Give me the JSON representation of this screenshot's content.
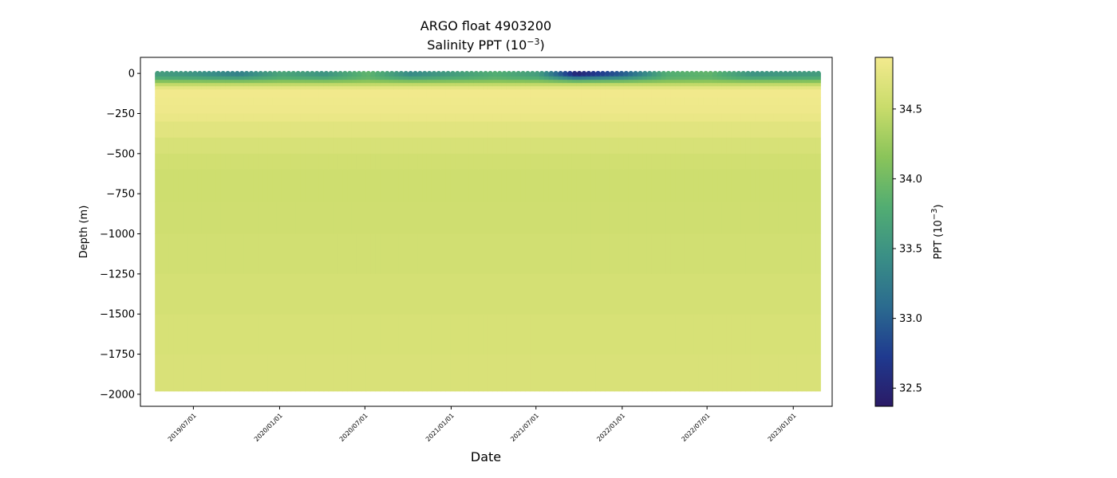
{
  "chart_data": {
    "type": "heatmap",
    "title": "ARGO float 4903200",
    "subtitle_text": "Salinity PPT (10",
    "subtitle_sup": "−3",
    "subtitle_close": ")",
    "xlabel": "Date",
    "ylabel": "Depth (m)",
    "colorbar_label_text": "PPT (10",
    "colorbar_label_sup": "−3",
    "colorbar_label_close": ")",
    "colormap": "haline",
    "colormap_stops": [
      "#2a1a66",
      "#1f3a8f",
      "#2b6b8f",
      "#3a8f86",
      "#52ad72",
      "#8ac45a",
      "#c9dc6b",
      "#f3ea8e"
    ],
    "xlim": [
      "2019-03-10",
      "2023-03-25"
    ],
    "x_start": "2019-04-10",
    "x_end": "2023-02-25",
    "x_ticks": [
      "2019/07/01",
      "2020/01/01",
      "2020/07/01",
      "2021/01/01",
      "2021/07/01",
      "2022/01/01",
      "2022/07/01",
      "2023/01/01"
    ],
    "ylim": [
      -2075,
      100
    ],
    "y_ticks": [
      0,
      -250,
      -500,
      -750,
      -1000,
      -1250,
      -1500,
      -1750,
      -2000
    ],
    "y_tick_labels": [
      "0",
      "−250",
      "−500",
      "−750",
      "−1000",
      "−1250",
      "−1500",
      "−1750",
      "−2000"
    ],
    "clim": [
      32.37,
      34.87
    ],
    "colorbar_ticks": [
      32.5,
      33.0,
      33.5,
      34.0,
      34.5
    ],
    "colorbar_tick_labels": [
      "32.5",
      "33.0",
      "33.5",
      "34.0",
      "34.5"
    ],
    "profile_interval_days": 10,
    "max_depth_m": -1980,
    "depth_profile": [
      {
        "depth": 0,
        "salinity": 33.5
      },
      {
        "depth": -40,
        "salinity": 34.1
      },
      {
        "depth": -100,
        "salinity": 34.86
      },
      {
        "depth": -250,
        "salinity": 34.82
      },
      {
        "depth": -400,
        "salinity": 34.66
      },
      {
        "depth": -600,
        "salinity": 34.55
      },
      {
        "depth": -1000,
        "salinity": 34.57
      },
      {
        "depth": -1500,
        "salinity": 34.62
      },
      {
        "depth": -2000,
        "salinity": 34.66
      }
    ],
    "surface_salinity_series": [
      {
        "date": "2019-04-10",
        "salinity": 33.6
      },
      {
        "date": "2019-07-01",
        "salinity": 33.5
      },
      {
        "date": "2019-10-01",
        "salinity": 33.3
      },
      {
        "date": "2020-01-01",
        "salinity": 33.7
      },
      {
        "date": "2020-04-01",
        "salinity": 33.5
      },
      {
        "date": "2020-07-01",
        "salinity": 33.9
      },
      {
        "date": "2020-10-01",
        "salinity": 33.4
      },
      {
        "date": "2021-01-01",
        "salinity": 33.6
      },
      {
        "date": "2021-04-01",
        "salinity": 33.8
      },
      {
        "date": "2021-07-01",
        "salinity": 33.6
      },
      {
        "date": "2021-09-20",
        "salinity": 32.5
      },
      {
        "date": "2022-01-01",
        "salinity": 33.0
      },
      {
        "date": "2022-04-01",
        "salinity": 33.8
      },
      {
        "date": "2022-07-01",
        "salinity": 33.9
      },
      {
        "date": "2022-10-01",
        "salinity": 33.5
      },
      {
        "date": "2023-02-25",
        "salinity": 33.6
      }
    ]
  }
}
